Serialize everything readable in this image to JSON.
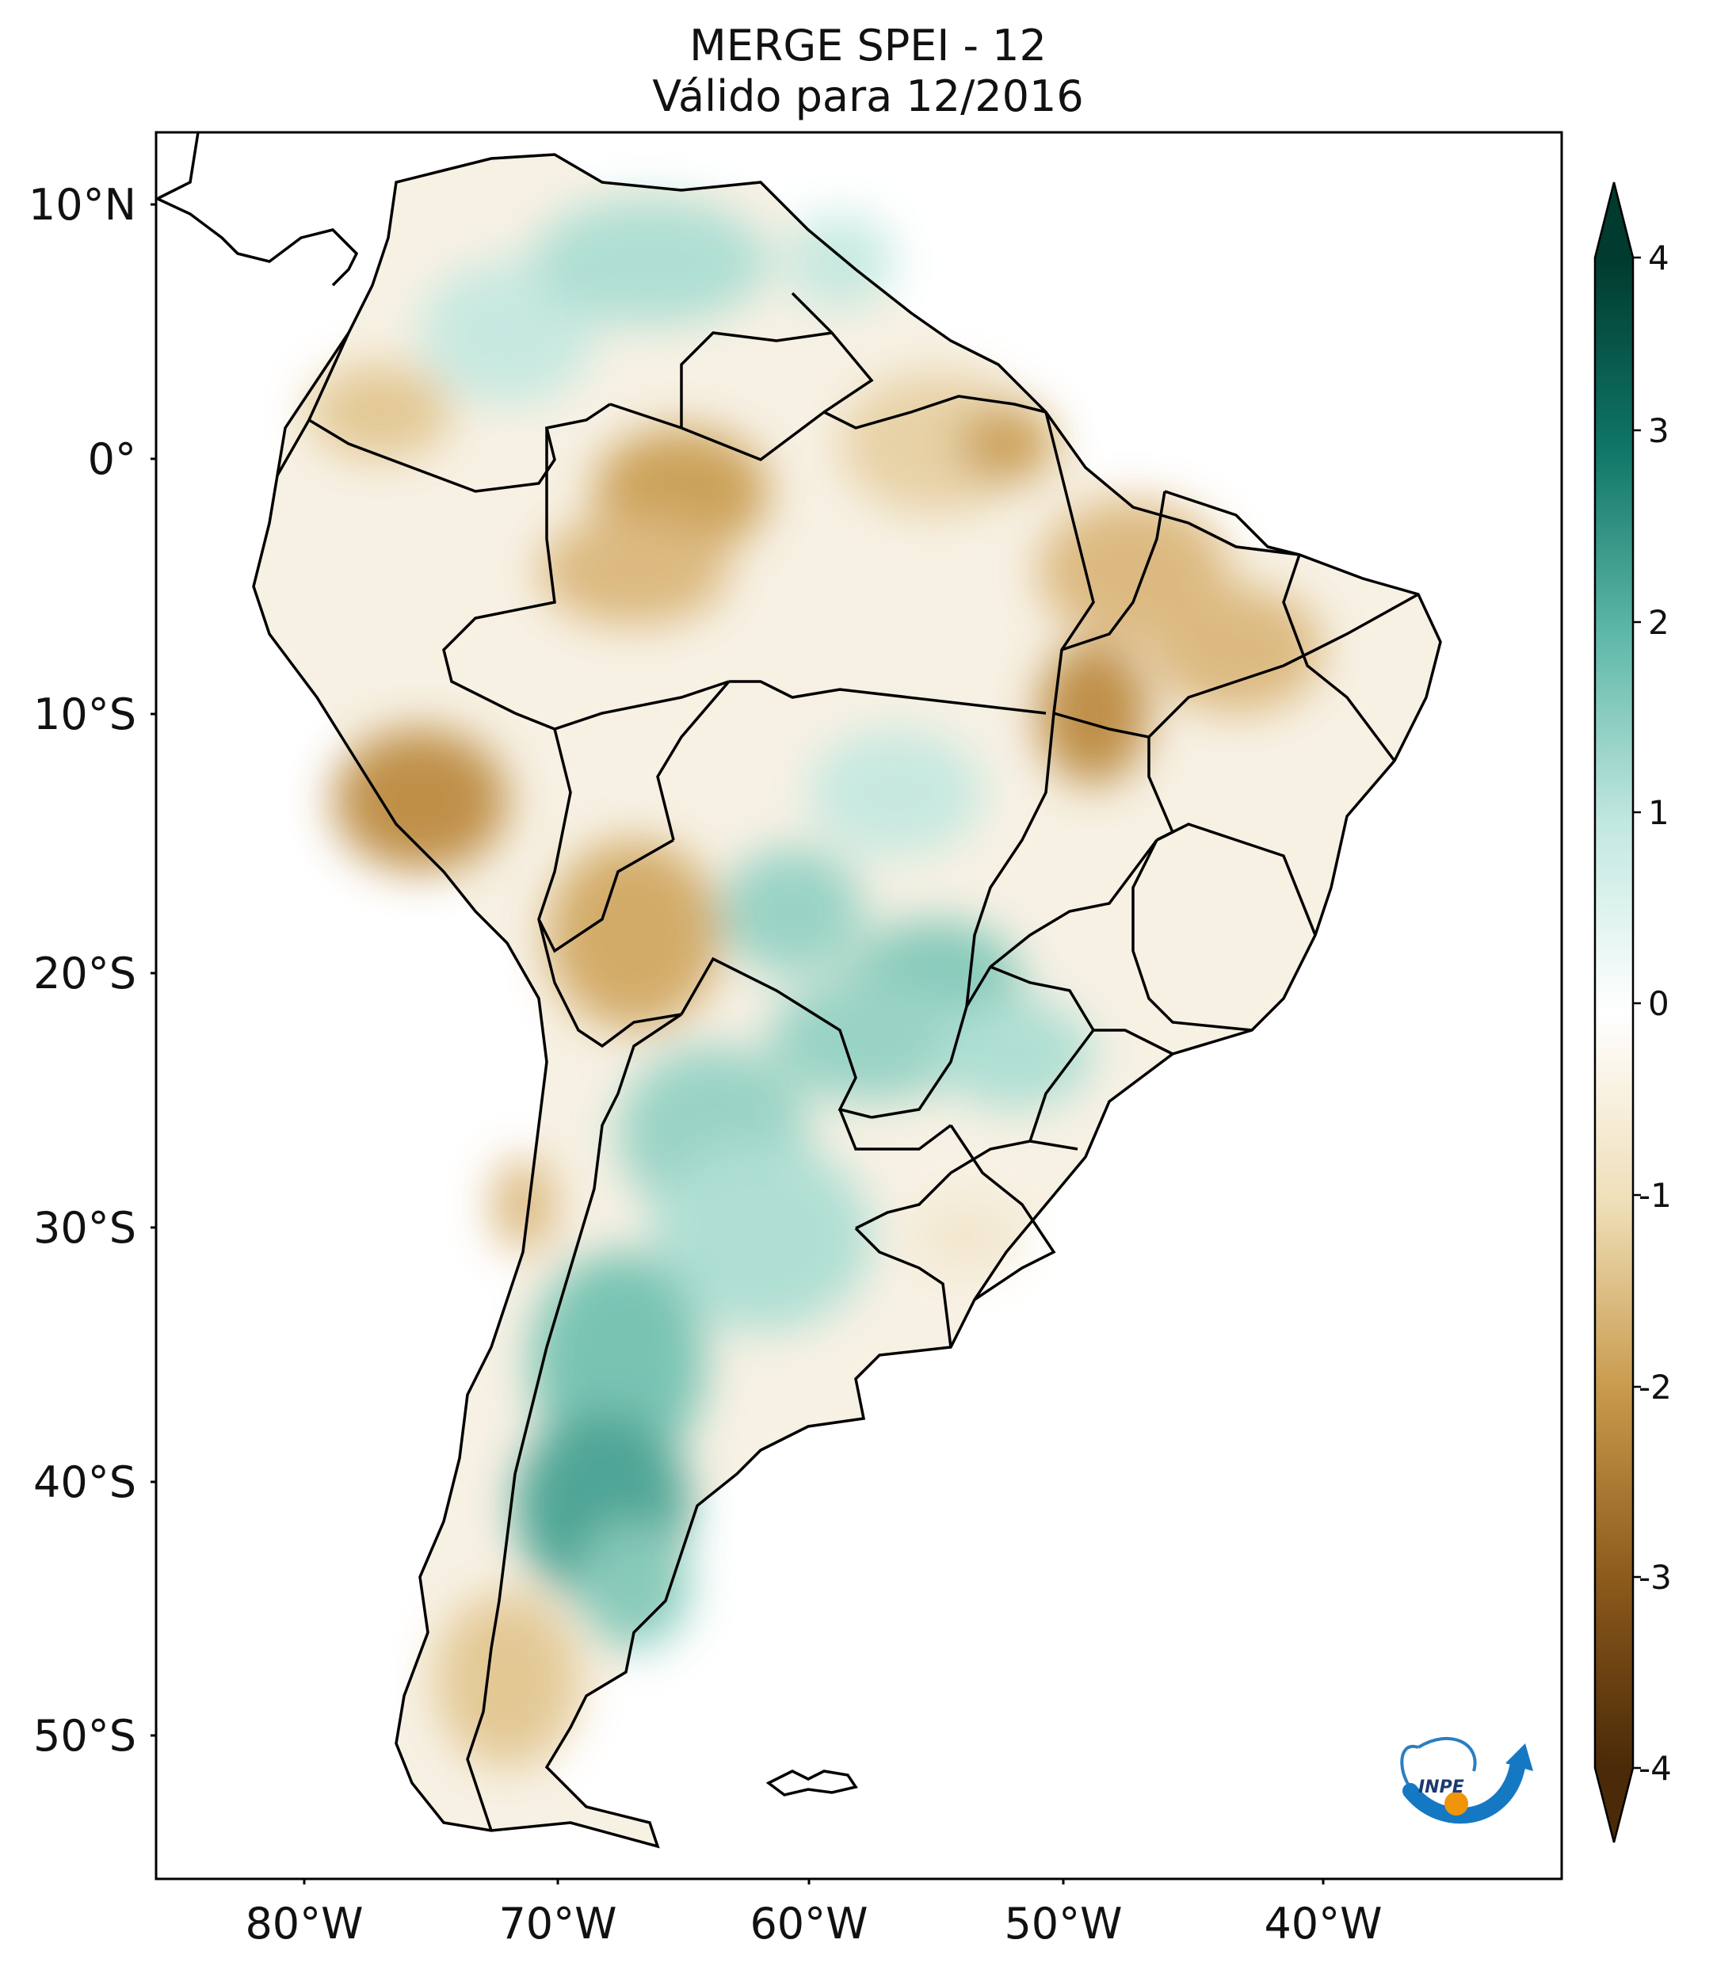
{
  "title": {
    "line1": "MERGE   SPEI - 12",
    "line2": "Válido para 12/2016"
  },
  "axes": {
    "lat_labels": [
      "10°N",
      "0°",
      "10°S",
      "20°S",
      "30°S",
      "40°S",
      "50°S"
    ],
    "lon_labels": [
      "80°W",
      "70°W",
      "60°W",
      "50°W",
      "40°W"
    ]
  },
  "colorbar": {
    "tick_labels": [
      "4",
      "3",
      "2",
      "1",
      "0",
      "-1",
      "-2",
      "-3",
      "-4"
    ],
    "range": [
      -4,
      4
    ],
    "colormap": "BrBG",
    "colors": {
      "min": "#4a2a08",
      "neg_strong": "#8c5a1c",
      "neg_mid": "#c89a4c",
      "neg_light": "#efdfb8",
      "zero": "#ffffff",
      "pos_light": "#c2e8e0",
      "pos_mid": "#5fb8a8",
      "pos_strong": "#0f7566",
      "max": "#013a2e"
    }
  },
  "logo": {
    "name": "inpe-logo",
    "text": "INPE"
  }
}
